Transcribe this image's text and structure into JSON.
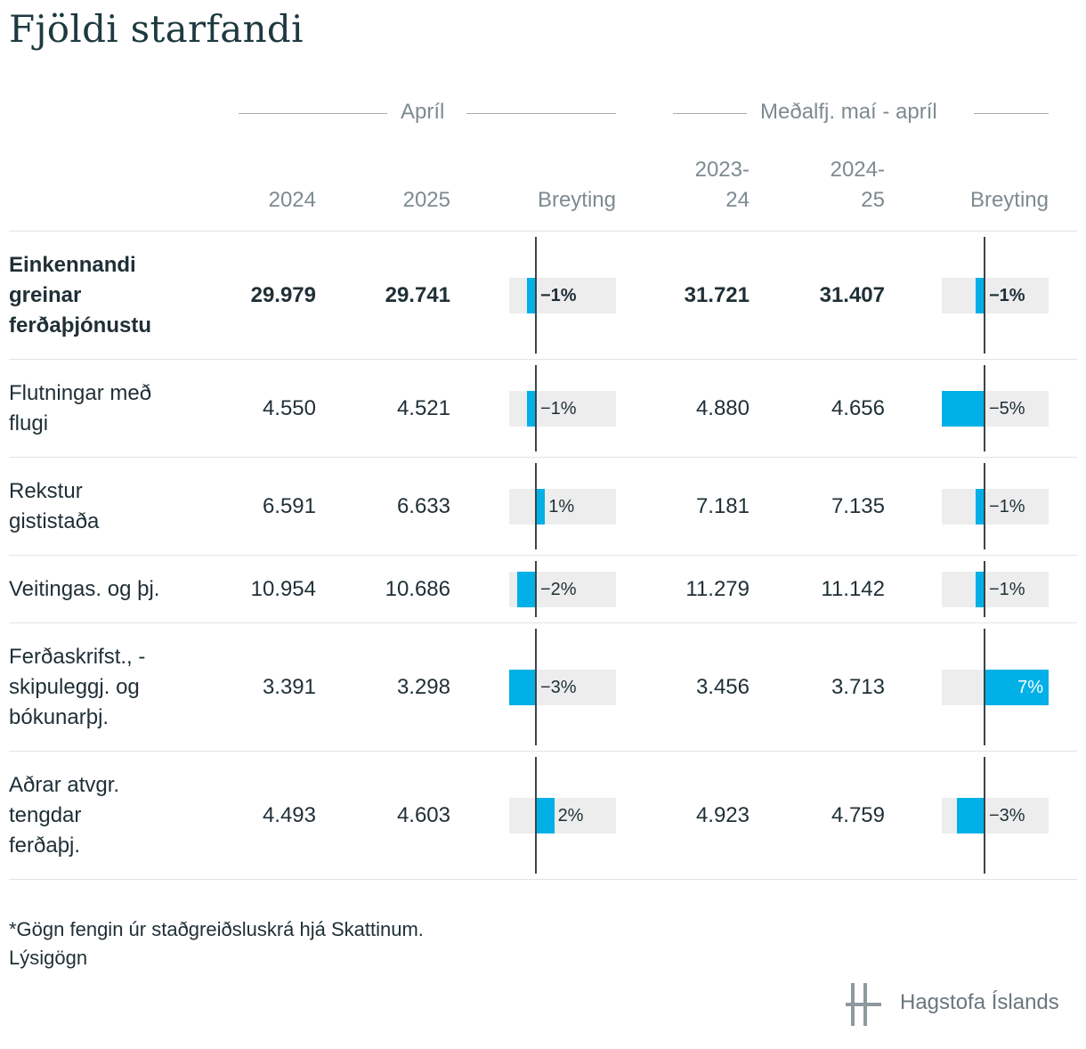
{
  "title": "Fjöldi starfandi",
  "groups": [
    {
      "label": "Apríl"
    },
    {
      "label": "Meðalfj. maí - apríl"
    }
  ],
  "columns": {
    "c1": "2024",
    "c2": "2025",
    "c3": "Breyting",
    "c4a": "2023-",
    "c4b": "24",
    "c5a": "2024-",
    "c5b": "25",
    "c6": "Breyting"
  },
  "chart_data": {
    "type": "table",
    "max_abs_change_pct": 7,
    "rows": [
      {
        "label": "Einkennandi greinar ferðaþjónustu",
        "label_lines": [
          "Einkennandi",
          "greinar",
          "ferðaþjónustu"
        ],
        "bold": true,
        "apr_2024": "29.979",
        "apr_2025": "29.741",
        "apr_change": -1,
        "apr_change_label": "−1%",
        "avg_2023_24": "31.721",
        "avg_2024_25": "31.407",
        "avg_change": -1,
        "avg_change_label": "−1%"
      },
      {
        "label": "Flutningar með flugi",
        "label_lines": [
          "Flutningar með",
          "flugi"
        ],
        "bold": false,
        "apr_2024": "4.550",
        "apr_2025": "4.521",
        "apr_change": -1,
        "apr_change_label": "−1%",
        "avg_2023_24": "4.880",
        "avg_2024_25": "4.656",
        "avg_change": -5,
        "avg_change_label": "−5%"
      },
      {
        "label": "Rekstur gististaða",
        "label_lines": [
          "Rekstur",
          "gististaða"
        ],
        "bold": false,
        "apr_2024": "6.591",
        "apr_2025": "6.633",
        "apr_change": 1,
        "apr_change_label": "1%",
        "avg_2023_24": "7.181",
        "avg_2024_25": "7.135",
        "avg_change": -1,
        "avg_change_label": "−1%"
      },
      {
        "label": "Veitingas. og þj.",
        "label_lines": [
          "Veitingas. og þj."
        ],
        "bold": false,
        "apr_2024": "10.954",
        "apr_2025": "10.686",
        "apr_change": -2,
        "apr_change_label": "−2%",
        "avg_2023_24": "11.279",
        "avg_2024_25": "11.142",
        "avg_change": -1,
        "avg_change_label": "−1%"
      },
      {
        "label": "Ferðaskrifst., -skipuleggj. og bókunarþj.",
        "label_lines": [
          "Ferðaskrifst., -",
          "skipuleggj. og",
          "bókunarþj."
        ],
        "bold": false,
        "apr_2024": "3.391",
        "apr_2025": "3.298",
        "apr_change": -3,
        "apr_change_label": "−3%",
        "avg_2023_24": "3.456",
        "avg_2024_25": "3.713",
        "avg_change": 7,
        "avg_change_label": "7%"
      },
      {
        "label": "Aðrar atvgr. tengdar ferðaþj.",
        "label_lines": [
          "Aðrar atvgr.",
          "tengdar",
          "ferðaþj."
        ],
        "bold": false,
        "apr_2024": "4.493",
        "apr_2025": "4.603",
        "apr_change": 2,
        "apr_change_label": "2%",
        "avg_2023_24": "4.923",
        "avg_2024_25": "4.759",
        "avg_change": -3,
        "avg_change_label": "−3%"
      }
    ]
  },
  "footnote": "*Gögn fengin úr staðgreiðsluskrá hjá Skattinum.",
  "metadata_link": "Lýsigögn",
  "logo_text": "Hagstofa Íslands",
  "colors": {
    "bar": "#00b0e6",
    "track": "#ededed",
    "axis": "#3b4448"
  }
}
